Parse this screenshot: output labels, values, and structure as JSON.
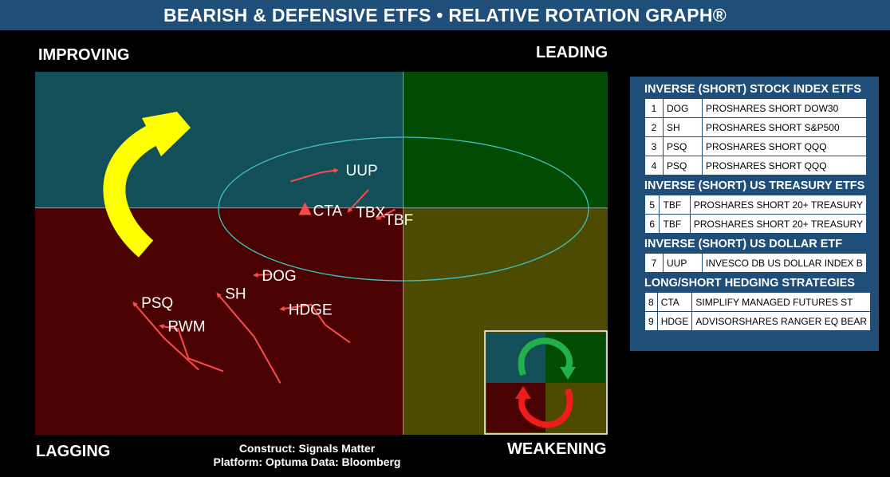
{
  "title": "BEARISH & DEFENSIVE ETFS • RELATIVE ROTATION GRAPH®",
  "quadrants": {
    "improving": "IMPROVING",
    "leading": "LEADING",
    "lagging": "LAGGING",
    "weakening": "WEAKENING"
  },
  "colors": {
    "improving": "#124f58",
    "leading": "#024b03",
    "lagging": "#4b0203",
    "weakening": "#4d4a02",
    "tail": "#ff4a4a",
    "rotation_arrow": "#ffff00",
    "ellipse": "#3fc0c0",
    "panel": "#1f4e79"
  },
  "credits": {
    "construct": "Construct: Signals Matter",
    "platform": "Platform: Optuma  Data: Bloomberg"
  },
  "chart_data": {
    "type": "scatter",
    "title": "BEARISH & DEFENSIVE ETFS • RELATIVE ROTATION GRAPH®",
    "series": [
      {
        "name": "UUP",
        "x": [
          -0.55,
          -0.4,
          -0.32
        ],
        "y": [
          0.35,
          0.47,
          0.5
        ]
      },
      {
        "name": "CTA",
        "x": [
          -0.48
        ],
        "y": [
          -0.03
        ]
      },
      {
        "name": "TBX",
        "x": [
          -0.17,
          -0.27
        ],
        "y": [
          0.24,
          -0.05
        ]
      },
      {
        "name": "TBF",
        "x": [
          -0.04,
          -0.13
        ],
        "y": [
          -0.02,
          -0.15
        ]
      },
      {
        "name": "DOG",
        "x": [
          -0.64,
          -0.73
        ],
        "y": [
          -0.88,
          -0.89
        ]
      },
      {
        "name": "HDGE",
        "x": [
          -0.26,
          -0.38,
          -0.45,
          -0.6
        ],
        "y": [
          -1.78,
          -1.55,
          -1.28,
          -1.34
        ]
      },
      {
        "name": "SH",
        "x": [
          -0.6,
          -0.73,
          -0.91
        ],
        "y": [
          -2.32,
          -1.7,
          -1.13
        ]
      },
      {
        "name": "RWM",
        "x": [
          -0.88,
          -1.05,
          -1.1,
          -1.19
        ],
        "y": [
          -2.16,
          -1.99,
          -1.6,
          -1.56
        ]
      },
      {
        "name": "PSQ",
        "x": [
          -1.0,
          -1.17,
          -1.32
        ],
        "y": [
          -2.14,
          -1.72,
          -1.25
        ]
      }
    ],
    "quadrant_split": {
      "x": 0,
      "y": 0
    },
    "xlim": [
      -1.8,
      1.0
    ],
    "ylim": [
      -3.0,
      1.8
    ],
    "grid": false
  },
  "legend": {
    "sections": [
      {
        "title": "INVERSE (SHORT) STOCK INDEX ETFS",
        "rows": [
          {
            "num": "1",
            "ticker": "DOG",
            "name": "PROSHARES SHORT DOW30"
          },
          {
            "num": "2",
            "ticker": "SH",
            "name": "PROSHARES SHORT S&P500"
          },
          {
            "num": "3",
            "ticker": "PSQ",
            "name": "PROSHARES SHORT QQQ"
          },
          {
            "num": "4",
            "ticker": "PSQ",
            "name": "PROSHARES SHORT QQQ"
          }
        ]
      },
      {
        "title": "INVERSE (SHORT) US TREASURY ETFS",
        "rows": [
          {
            "num": "5",
            "ticker": "TBF",
            "name": "PROSHARES SHORT 20+ TREASURY"
          },
          {
            "num": "6",
            "ticker": "TBF",
            "name": "PROSHARES SHORT 20+ TREASURY"
          }
        ]
      },
      {
        "title": "INVERSE (SHORT) US DOLLAR ETF",
        "rows": [
          {
            "num": "7",
            "ticker": "UUP",
            "name": "INVESCO DB US DOLLAR INDEX B"
          }
        ]
      },
      {
        "title": "LONG/SHORT HEDGING STRATEGIES",
        "rows": [
          {
            "num": "8",
            "ticker": "CTA",
            "name": "SIMPLIFY MANAGED FUTURES ST"
          },
          {
            "num": "9",
            "ticker": "HDGE",
            "name": "ADVISORSHARES RANGER EQ BEAR"
          }
        ]
      }
    ]
  }
}
